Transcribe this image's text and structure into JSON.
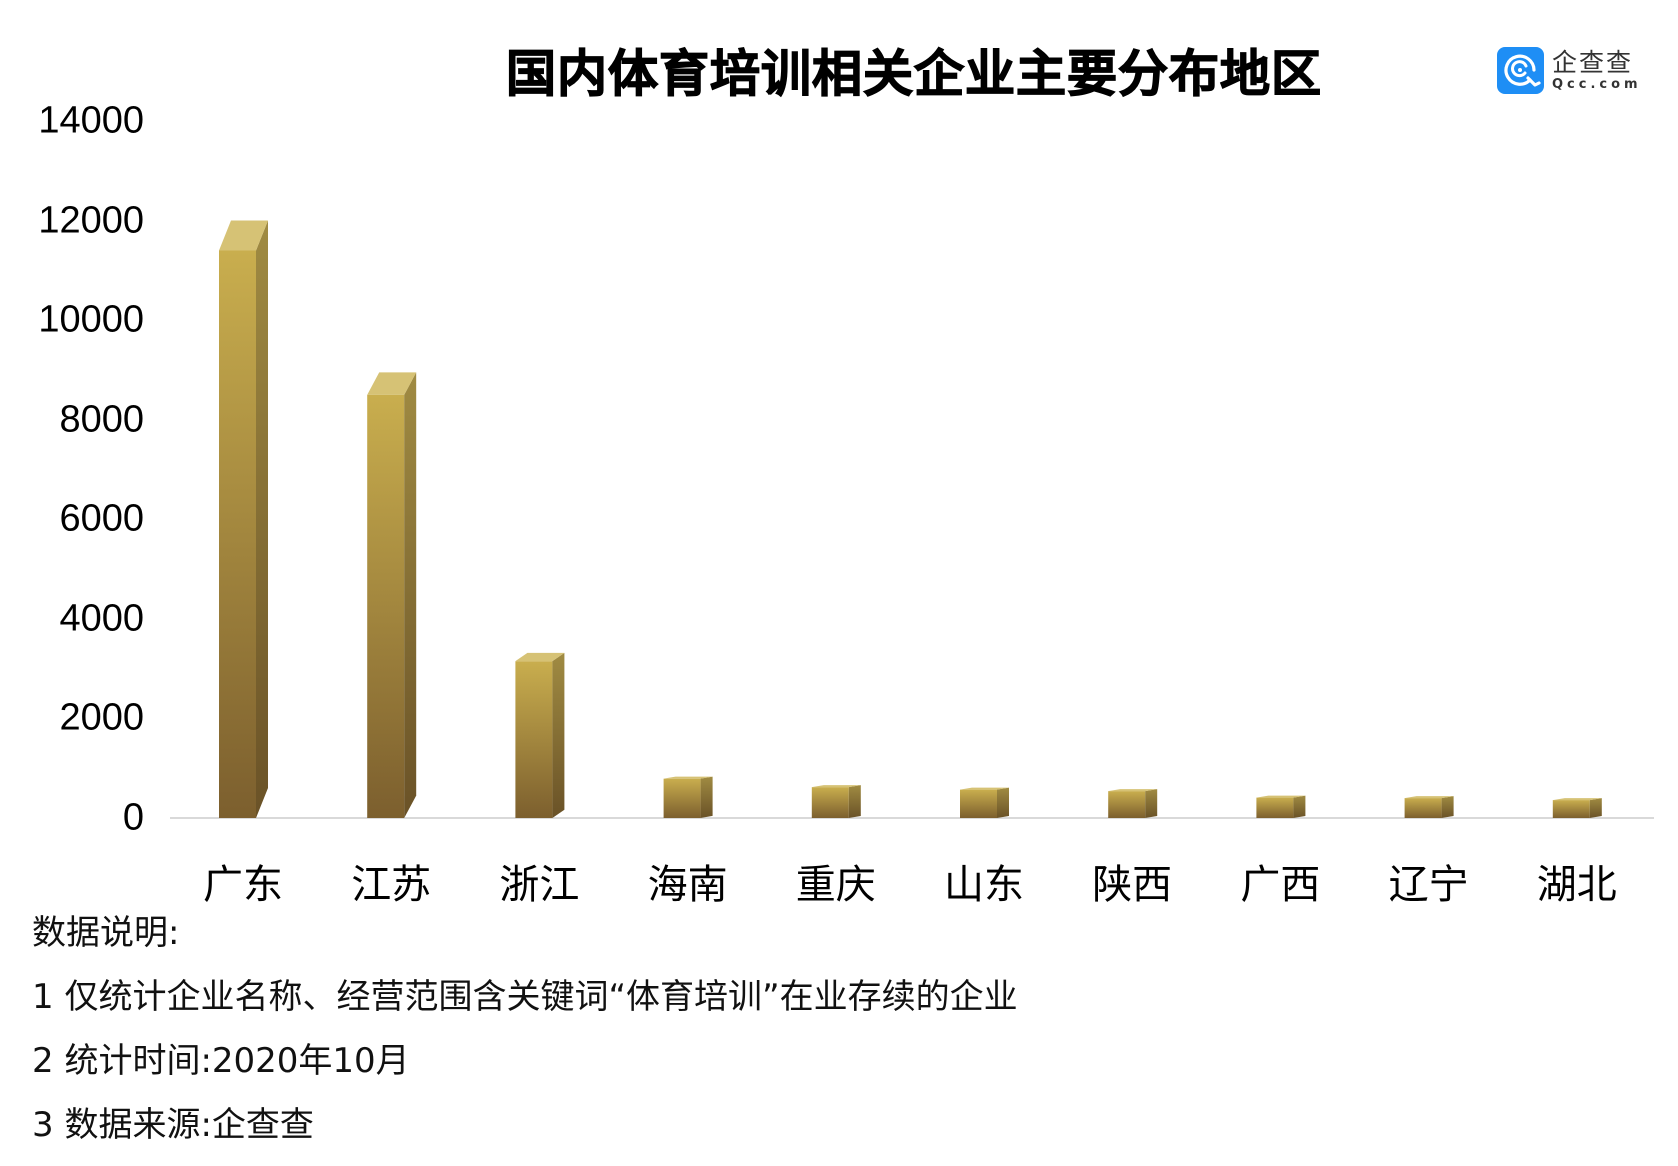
{
  "title": "国内体育培训相关企业主要分布地区",
  "logo": {
    "icon": "qcc-logo-icon",
    "name_cn": "企查查",
    "name_en": "Qcc.com",
    "brand_color": "#1e8ef5"
  },
  "y_ticks": [
    "14000",
    "12000",
    "10000",
    "8000",
    "6000",
    "4000",
    "2000",
    "0"
  ],
  "x_labels": [
    "广东",
    "江苏",
    "浙江",
    "海南",
    "重庆",
    "山东",
    "陕西",
    "广西",
    "辽宁",
    "湖北"
  ],
  "notes": {
    "heading": "数据说明:",
    "items": [
      "1 仅统计企业名称、经营范围含关键词“体育培训”在业存续的企业",
      "2 统计时间:2020年10月",
      "3 数据来源:企查查"
    ]
  },
  "colors": {
    "bar_front_top": "#c9ae4e",
    "bar_front_bottom": "#7c5f2e",
    "bar_side_top": "#a08b42",
    "bar_side_bottom": "#6a5227",
    "bar_top_face": "#d6c275",
    "axis_line": "#d9d9d9"
  },
  "chart_data": {
    "type": "bar",
    "title": "国内体育培训相关企业主要分布地区",
    "categories": [
      "广东",
      "江苏",
      "浙江",
      "海南",
      "重庆",
      "山东",
      "陕西",
      "广西",
      "辽宁",
      "湖北"
    ],
    "values": [
      11400,
      8500,
      3150,
      790,
      620,
      570,
      540,
      410,
      400,
      360
    ],
    "xlabel": "",
    "ylabel": "",
    "ylim": [
      0,
      14000
    ],
    "yticks": [
      0,
      2000,
      4000,
      6000,
      8000,
      10000,
      12000,
      14000
    ],
    "grid": false,
    "legend": "none",
    "style": "3d-column"
  }
}
